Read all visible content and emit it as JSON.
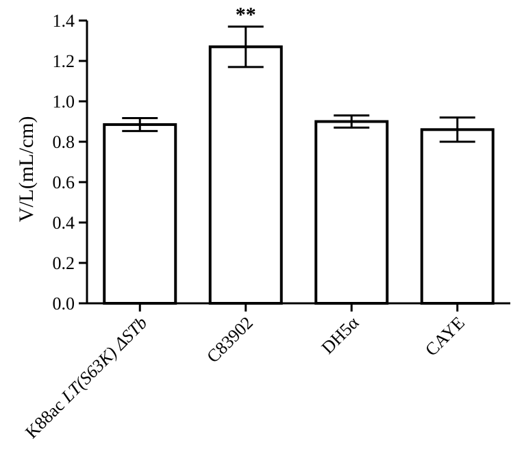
{
  "chart_data": {
    "type": "bar",
    "title": "",
    "xlabel": "",
    "ylabel": "V/L(mL/cm)",
    "ylim": [
      0,
      1.4
    ],
    "yticks": [
      "0.0",
      "0.2",
      "0.4",
      "0.6",
      "0.8",
      "1.0",
      "1.2",
      "1.4"
    ],
    "ytick_values": [
      0.0,
      0.2,
      0.4,
      0.6,
      0.8,
      1.0,
      1.2,
      1.4
    ],
    "grid": false,
    "categories": [
      {
        "plain": "K88ac ",
        "italic": "LT(S63K) ΔSTb"
      },
      {
        "plain": "C83902",
        "italic": ""
      },
      {
        "plain": "DH5α",
        "italic": ""
      },
      {
        "plain": "CAYE",
        "italic": ""
      }
    ],
    "values": [
      0.885,
      1.27,
      0.9,
      0.86
    ],
    "error": [
      0.032,
      0.1,
      0.03,
      0.06
    ],
    "annotations": [
      "",
      "**",
      "",
      ""
    ],
    "bar_fill": "#ffffff",
    "bar_stroke": "#000000"
  }
}
